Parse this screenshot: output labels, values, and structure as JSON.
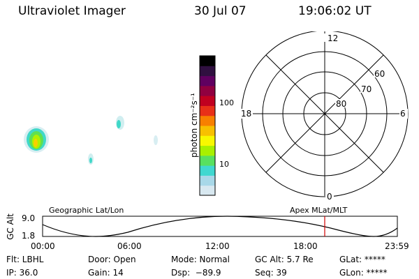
{
  "header": {
    "title": "Ultraviolet Imager",
    "date": "30 Jul 07",
    "time": "19:06:02 UT"
  },
  "colorbar": {
    "unit_label": "photon cm⁻²s⁻¹",
    "ticks": [
      "100",
      "10"
    ],
    "colors": [
      "#d8e8f0",
      "#a8d8e8",
      "#40d8d0",
      "#58e060",
      "#a8f000",
      "#f8f800",
      "#f8c000",
      "#f88000",
      "#e83018",
      "#c00020",
      "#900040",
      "#600060",
      "#301040",
      "#000000"
    ]
  },
  "polar_plot": {
    "mlt_labels": {
      "top": "12",
      "left": "18",
      "right": "6",
      "bottom": "0"
    },
    "lat_labels": [
      "60",
      "70",
      "80"
    ]
  },
  "timeline": {
    "left_label": "Geographic Lat/Lon",
    "right_label": "Apex MLat/MLT",
    "axis_label": "GC Alt",
    "y_ticks": [
      "9.0",
      "1.8"
    ],
    "x_ticks": [
      "00:00",
      "06:00",
      "12:00",
      "18:00",
      "23:59"
    ],
    "marker_color": "#d00000"
  },
  "status": {
    "filter": "Flt: LBHL",
    "door": "Door: Open",
    "mode": "Mode: Normal",
    "gc_alt": "GC Alt: 5.7 Re",
    "glat": "GLat: *****",
    "ip": "IP: 36.0",
    "gain": "Gain: 14",
    "dsp": "Dsp:  −89.9",
    "seq": "Seq: 39",
    "glon": "GLon: *****"
  }
}
